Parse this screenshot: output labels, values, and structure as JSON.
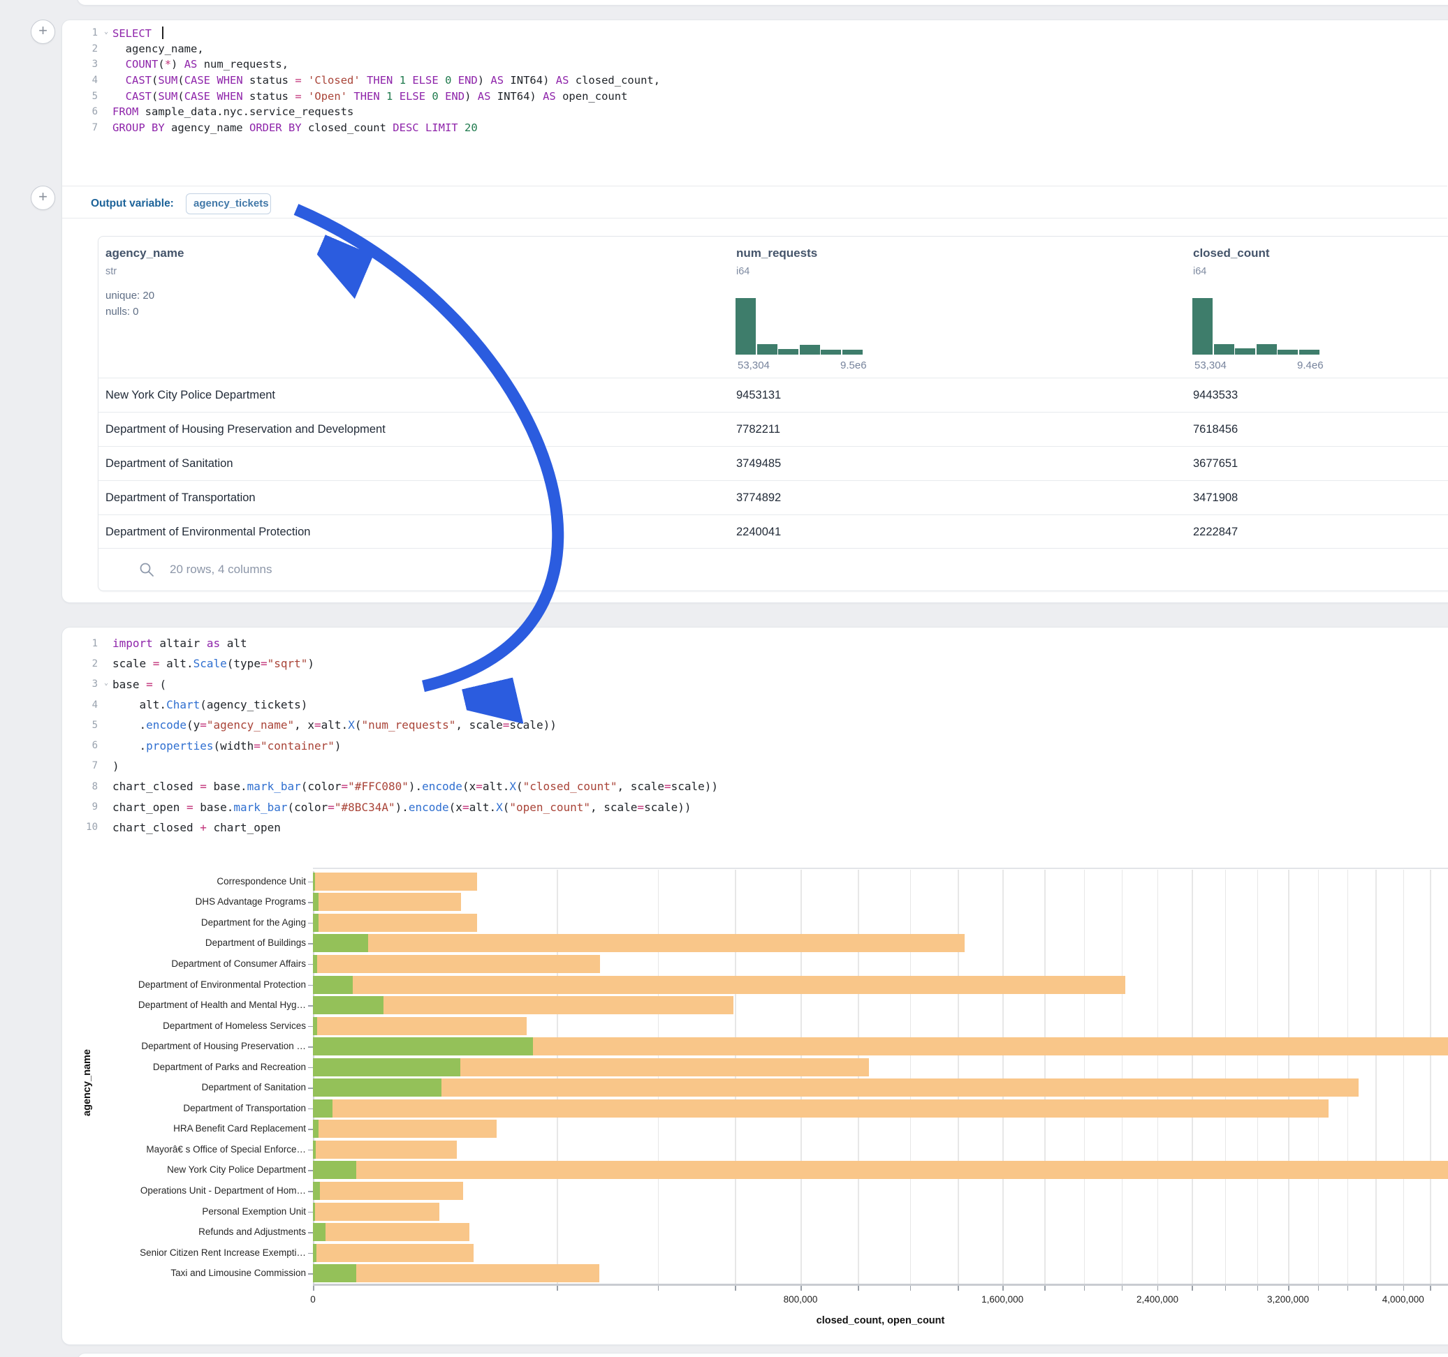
{
  "arrow": {
    "color": "#2B5CDF"
  },
  "output": {
    "label": "Output variable:",
    "variable": "agency_tickets"
  },
  "sql_cell": {
    "lines": [
      {
        "n": "1",
        "chevron": true,
        "highlight": true,
        "tokens": [
          {
            "t": "SELECT",
            "c": "kw"
          },
          {
            "t": " ",
            "c": "pl"
          },
          {
            "t": "",
            "c": "cursor"
          }
        ]
      },
      {
        "n": "2",
        "tokens": [
          {
            "t": "  agency_name,",
            "c": "pl"
          }
        ]
      },
      {
        "n": "3",
        "tokens": [
          {
            "t": "  ",
            "c": "pl"
          },
          {
            "t": "COUNT",
            "c": "kw"
          },
          {
            "t": "(",
            "c": "pl"
          },
          {
            "t": "*",
            "c": "op"
          },
          {
            "t": ") ",
            "c": "pl"
          },
          {
            "t": "AS",
            "c": "kw"
          },
          {
            "t": " num_requests,",
            "c": "pl"
          }
        ]
      },
      {
        "n": "4",
        "tokens": [
          {
            "t": "  ",
            "c": "pl"
          },
          {
            "t": "CAST",
            "c": "kw"
          },
          {
            "t": "(",
            "c": "pl"
          },
          {
            "t": "SUM",
            "c": "kw"
          },
          {
            "t": "(",
            "c": "pl"
          },
          {
            "t": "CASE",
            "c": "kw"
          },
          {
            "t": " ",
            "c": "pl"
          },
          {
            "t": "WHEN",
            "c": "kw"
          },
          {
            "t": " status ",
            "c": "pl"
          },
          {
            "t": "=",
            "c": "op"
          },
          {
            "t": " ",
            "c": "pl"
          },
          {
            "t": "'Closed'",
            "c": "str"
          },
          {
            "t": " ",
            "c": "pl"
          },
          {
            "t": "THEN",
            "c": "kw"
          },
          {
            "t": " ",
            "c": "pl"
          },
          {
            "t": "1",
            "c": "num"
          },
          {
            "t": " ",
            "c": "pl"
          },
          {
            "t": "ELSE",
            "c": "kw"
          },
          {
            "t": " ",
            "c": "pl"
          },
          {
            "t": "0",
            "c": "num"
          },
          {
            "t": " ",
            "c": "pl"
          },
          {
            "t": "END",
            "c": "kw"
          },
          {
            "t": ") ",
            "c": "pl"
          },
          {
            "t": "AS",
            "c": "kw"
          },
          {
            "t": " INT64) ",
            "c": "pl"
          },
          {
            "t": "AS",
            "c": "kw"
          },
          {
            "t": " closed_count,",
            "c": "pl"
          }
        ]
      },
      {
        "n": "5",
        "tokens": [
          {
            "t": "  ",
            "c": "pl"
          },
          {
            "t": "CAST",
            "c": "kw"
          },
          {
            "t": "(",
            "c": "pl"
          },
          {
            "t": "SUM",
            "c": "kw"
          },
          {
            "t": "(",
            "c": "pl"
          },
          {
            "t": "CASE",
            "c": "kw"
          },
          {
            "t": " ",
            "c": "pl"
          },
          {
            "t": "WHEN",
            "c": "kw"
          },
          {
            "t": " status ",
            "c": "pl"
          },
          {
            "t": "=",
            "c": "op"
          },
          {
            "t": " ",
            "c": "pl"
          },
          {
            "t": "'Open'",
            "c": "str"
          },
          {
            "t": " ",
            "c": "pl"
          },
          {
            "t": "THEN",
            "c": "kw"
          },
          {
            "t": " ",
            "c": "pl"
          },
          {
            "t": "1",
            "c": "num"
          },
          {
            "t": " ",
            "c": "pl"
          },
          {
            "t": "ELSE",
            "c": "kw"
          },
          {
            "t": " ",
            "c": "pl"
          },
          {
            "t": "0",
            "c": "num"
          },
          {
            "t": " ",
            "c": "pl"
          },
          {
            "t": "END",
            "c": "kw"
          },
          {
            "t": ") ",
            "c": "pl"
          },
          {
            "t": "AS",
            "c": "kw"
          },
          {
            "t": " INT64) ",
            "c": "pl"
          },
          {
            "t": "AS",
            "c": "kw"
          },
          {
            "t": " open_count",
            "c": "pl"
          }
        ]
      },
      {
        "n": "6",
        "tokens": [
          {
            "t": "FROM",
            "c": "kw"
          },
          {
            "t": " sample_data.nyc.service_requests",
            "c": "pl"
          }
        ]
      },
      {
        "n": "7",
        "tokens": [
          {
            "t": "GROUP BY",
            "c": "kw"
          },
          {
            "t": " agency_name ",
            "c": "pl"
          },
          {
            "t": "ORDER BY",
            "c": "kw"
          },
          {
            "t": " closed_count ",
            "c": "pl"
          },
          {
            "t": "DESC",
            "c": "kw"
          },
          {
            "t": " ",
            "c": "pl"
          },
          {
            "t": "LIMIT",
            "c": "kw"
          },
          {
            "t": " ",
            "c": "pl"
          },
          {
            "t": "20",
            "c": "num"
          }
        ]
      }
    ]
  },
  "table": {
    "columns": [
      {
        "name": "agency_name",
        "type": "str",
        "stats": [
          "unique: 20",
          "nulls: 0"
        ]
      },
      {
        "name": "num_requests",
        "type": "i64",
        "hist": {
          "bars": [
            1,
            0.19,
            0.1,
            0.17,
            0.086,
            0.086
          ],
          "min_label": "53,304",
          "max_label": "9.5e6"
        }
      },
      {
        "name": "closed_count",
        "type": "i64",
        "hist": {
          "bars": [
            1,
            0.19,
            0.11,
            0.18,
            0.09,
            0.09
          ],
          "min_label": "53,304",
          "max_label": "9.4e6"
        }
      }
    ],
    "rows": [
      {
        "agency_name": "New York City Police Department",
        "num_requests": "9453131",
        "closed_count": "9443533"
      },
      {
        "agency_name": "Department of Housing Preservation and Development",
        "num_requests": "7782211",
        "closed_count": "7618456"
      },
      {
        "agency_name": "Department of Sanitation",
        "num_requests": "3749485",
        "closed_count": "3677651"
      },
      {
        "agency_name": "Department of Transportation",
        "num_requests": "3774892",
        "closed_count": "3471908"
      },
      {
        "agency_name": "Department of Environmental Protection",
        "num_requests": "2240041",
        "closed_count": "2222847"
      }
    ],
    "footer": "20 rows, 4 columns"
  },
  "python_cell": {
    "lines": [
      {
        "n": "1",
        "tokens": [
          {
            "t": "import",
            "c": "kw"
          },
          {
            "t": " altair ",
            "c": "pl"
          },
          {
            "t": "as",
            "c": "kw"
          },
          {
            "t": " alt",
            "c": "pl"
          }
        ]
      },
      {
        "n": "2",
        "tokens": [
          {
            "t": "scale ",
            "c": "pl"
          },
          {
            "t": "=",
            "c": "op"
          },
          {
            "t": " alt.",
            "c": "pl"
          },
          {
            "t": "Scale",
            "c": "fn"
          },
          {
            "t": "(type",
            "c": "pl"
          },
          {
            "t": "=",
            "c": "op"
          },
          {
            "t": "\"sqrt\"",
            "c": "str"
          },
          {
            "t": ")",
            "c": "pl"
          }
        ]
      },
      {
        "n": "3",
        "chevron": true,
        "tokens": [
          {
            "t": "base ",
            "c": "pl"
          },
          {
            "t": "=",
            "c": "op"
          },
          {
            "t": " (",
            "c": "pl"
          }
        ]
      },
      {
        "n": "4",
        "tokens": [
          {
            "t": "    alt.",
            "c": "pl"
          },
          {
            "t": "Chart",
            "c": "fn"
          },
          {
            "t": "(agency_tickets)",
            "c": "pl"
          }
        ]
      },
      {
        "n": "5",
        "tokens": [
          {
            "t": "    .",
            "c": "pl"
          },
          {
            "t": "encode",
            "c": "fn"
          },
          {
            "t": "(y",
            "c": "pl"
          },
          {
            "t": "=",
            "c": "op"
          },
          {
            "t": "\"agency_name\"",
            "c": "str"
          },
          {
            "t": ", x",
            "c": "pl"
          },
          {
            "t": "=",
            "c": "op"
          },
          {
            "t": "alt.",
            "c": "pl"
          },
          {
            "t": "X",
            "c": "fn"
          },
          {
            "t": "(",
            "c": "pl"
          },
          {
            "t": "\"num_requests\"",
            "c": "str"
          },
          {
            "t": ", scale",
            "c": "pl"
          },
          {
            "t": "=",
            "c": "op"
          },
          {
            "t": "scale))",
            "c": "pl"
          }
        ]
      },
      {
        "n": "6",
        "tokens": [
          {
            "t": "    .",
            "c": "pl"
          },
          {
            "t": "properties",
            "c": "fn"
          },
          {
            "t": "(width",
            "c": "pl"
          },
          {
            "t": "=",
            "c": "op"
          },
          {
            "t": "\"container\"",
            "c": "str"
          },
          {
            "t": ")",
            "c": "pl"
          }
        ]
      },
      {
        "n": "7",
        "tokens": [
          {
            "t": ")",
            "c": "pl"
          }
        ]
      },
      {
        "n": "8",
        "tokens": [
          {
            "t": "chart_closed ",
            "c": "pl"
          },
          {
            "t": "=",
            "c": "op"
          },
          {
            "t": " base.",
            "c": "pl"
          },
          {
            "t": "mark_bar",
            "c": "fn"
          },
          {
            "t": "(color",
            "c": "pl"
          },
          {
            "t": "=",
            "c": "op"
          },
          {
            "t": "\"#FFC080\"",
            "c": "str"
          },
          {
            "t": ").",
            "c": "pl"
          },
          {
            "t": "encode",
            "c": "fn"
          },
          {
            "t": "(x",
            "c": "pl"
          },
          {
            "t": "=",
            "c": "op"
          },
          {
            "t": "alt.",
            "c": "pl"
          },
          {
            "t": "X",
            "c": "fn"
          },
          {
            "t": "(",
            "c": "pl"
          },
          {
            "t": "\"closed_count\"",
            "c": "str"
          },
          {
            "t": ", scale",
            "c": "pl"
          },
          {
            "t": "=",
            "c": "op"
          },
          {
            "t": "scale))",
            "c": "pl"
          }
        ]
      },
      {
        "n": "9",
        "tokens": [
          {
            "t": "chart_open ",
            "c": "pl"
          },
          {
            "t": "=",
            "c": "op"
          },
          {
            "t": " base.",
            "c": "pl"
          },
          {
            "t": "mark_bar",
            "c": "fn"
          },
          {
            "t": "(color",
            "c": "pl"
          },
          {
            "t": "=",
            "c": "op"
          },
          {
            "t": "\"#8BC34A\"",
            "c": "str"
          },
          {
            "t": ").",
            "c": "pl"
          },
          {
            "t": "encode",
            "c": "fn"
          },
          {
            "t": "(x",
            "c": "pl"
          },
          {
            "t": "=",
            "c": "op"
          },
          {
            "t": "alt.",
            "c": "pl"
          },
          {
            "t": "X",
            "c": "fn"
          },
          {
            "t": "(",
            "c": "pl"
          },
          {
            "t": "\"open_count\"",
            "c": "str"
          },
          {
            "t": ", scale",
            "c": "pl"
          },
          {
            "t": "=",
            "c": "op"
          },
          {
            "t": "scale))",
            "c": "pl"
          }
        ]
      },
      {
        "n": "10",
        "tokens": [
          {
            "t": "chart_closed ",
            "c": "pl"
          },
          {
            "t": "+",
            "c": "op"
          },
          {
            "t": " chart_open",
            "c": "pl"
          }
        ]
      }
    ]
  },
  "chart_data": {
    "type": "bar",
    "orientation": "horizontal",
    "scale_type": "sqrt",
    "xlabel": "closed_count, open_count",
    "ylabel": "agency_name",
    "categories": [
      "Correspondence Unit",
      "DHS Advantage Programs",
      "Department for the Aging",
      "Department of Buildings",
      "Department of Consumer Affairs",
      "Department of Environmental Protection",
      "Department of Health and Mental Hyg…",
      "Department of Homeless Services",
      "Department of Housing Preservation …",
      "Department of Parks and Recreation",
      "Department of Sanitation",
      "Department of Transportation",
      "HRA Benefit Card Replacement",
      "Mayorâ€ s Office of Special Enforce…",
      "New York City Police Department",
      "Operations Unit - Department of Hom…",
      "Personal Exemption Unit",
      "Refunds and Adjustments",
      "Senior Citizen Rent Increase Exempti…",
      "Taxi and Limousine Commission"
    ],
    "series": [
      {
        "name": "closed_count",
        "color": "#F9C689",
        "code_color": "#FFC080",
        "values": [
          90700,
          73800,
          90700,
          1430000,
          277000,
          2222847,
          595000,
          154000,
          7618456,
          1040000,
          3677651,
          3471908,
          113700,
          69700,
          9443533,
          76000,
          53800,
          82400,
          86900,
          276000
        ]
      },
      {
        "name": "open_count",
        "color": "#94C159",
        "code_color": "#8BC34A",
        "values": [
          20,
          110,
          110,
          10200,
          60,
          5300,
          16800,
          60,
          163000,
          72800,
          55600,
          1300,
          100,
          30,
          6300,
          180,
          20,
          530,
          40,
          6300
        ]
      }
    ],
    "x_tick_values": [
      0,
      800000,
      1600000,
      2400000,
      3200000,
      4000000
    ],
    "x_tick_labels": [
      "0",
      "800,000",
      "1,600,000",
      "2,400,000",
      "3,200,000",
      "4,000,000"
    ],
    "gridline_step": 200000,
    "x_max_visible": 4350000,
    "grid": true,
    "legend_position": "none"
  }
}
